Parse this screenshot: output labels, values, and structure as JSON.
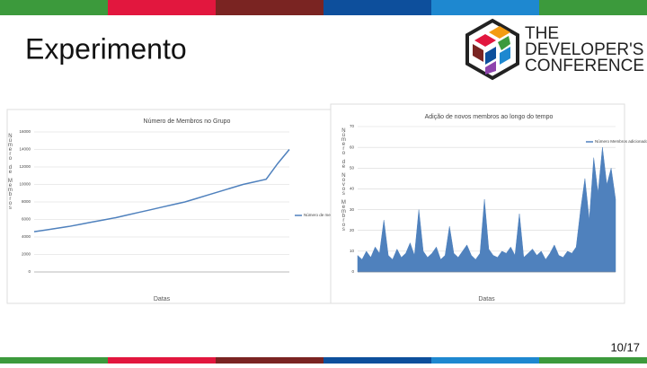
{
  "slide": {
    "title": "Experimento",
    "logo": [
      "THE",
      "DEVELOPER'S",
      "CONFERENCE"
    ],
    "page": "10/17"
  },
  "chart_data": [
    {
      "type": "line",
      "title": "Número de Membros no Grupo",
      "x_label": "Datas",
      "y_label": "Número de Membros",
      "categories": [
        null,
        null,
        null,
        null,
        null,
        null,
        null,
        null,
        null,
        null,
        null,
        null,
        null,
        null,
        null,
        null,
        null,
        null,
        null,
        null,
        null,
        null,
        null
      ],
      "series": [
        {
          "name": "Número de membros",
          "color": "#4f81bd",
          "values": [
            4600,
            4800,
            5000,
            5200,
            5450,
            5700,
            5950,
            6200,
            6500,
            6800,
            7100,
            7400,
            7700,
            8000,
            8400,
            8800,
            9200,
            9600,
            10000,
            10300,
            10600,
            12400,
            14000
          ]
        }
      ],
      "ylim": [
        0,
        16000
      ],
      "yticks": [
        0,
        2000,
        4000,
        6000,
        8000,
        10000,
        12000,
        14000,
        16000
      ],
      "grid": true,
      "legend": "right"
    },
    {
      "type": "area",
      "title": "Adição de novos membros ao longo do tempo",
      "x_label": "Datas",
      "y_label": "Número de Novos Membros",
      "categories": [
        null,
        null,
        null,
        null,
        null,
        null,
        null,
        null,
        null,
        null,
        null,
        null,
        null,
        null,
        null,
        null,
        null,
        null,
        null,
        null,
        null,
        null,
        null,
        null,
        null,
        null,
        null,
        null,
        null,
        null,
        null,
        null,
        null,
        null,
        null,
        null,
        null,
        null,
        null,
        null,
        null,
        null,
        null,
        null,
        null,
        null,
        null,
        null,
        null,
        null,
        null,
        null,
        null,
        null,
        null,
        null,
        null,
        null,
        null,
        null
      ],
      "series": [
        {
          "name": "Número Membros adicionados",
          "color": "#4f81bd",
          "values": [
            8,
            6,
            10,
            7,
            12,
            9,
            25,
            8,
            6,
            11,
            7,
            9,
            14,
            8,
            30,
            10,
            7,
            9,
            12,
            6,
            8,
            22,
            9,
            7,
            10,
            13,
            8,
            6,
            9,
            35,
            11,
            8,
            7,
            10,
            9,
            12,
            8,
            28,
            7,
            9,
            11,
            8,
            10,
            6,
            9,
            13,
            8,
            7,
            10,
            9,
            12,
            30,
            45,
            25,
            55,
            38,
            60,
            42,
            50,
            35
          ]
        }
      ],
      "ylim": [
        0,
        70
      ],
      "yticks": [
        0,
        10,
        20,
        30,
        40,
        50,
        60,
        70
      ],
      "grid": true,
      "legend": "top-right"
    }
  ]
}
